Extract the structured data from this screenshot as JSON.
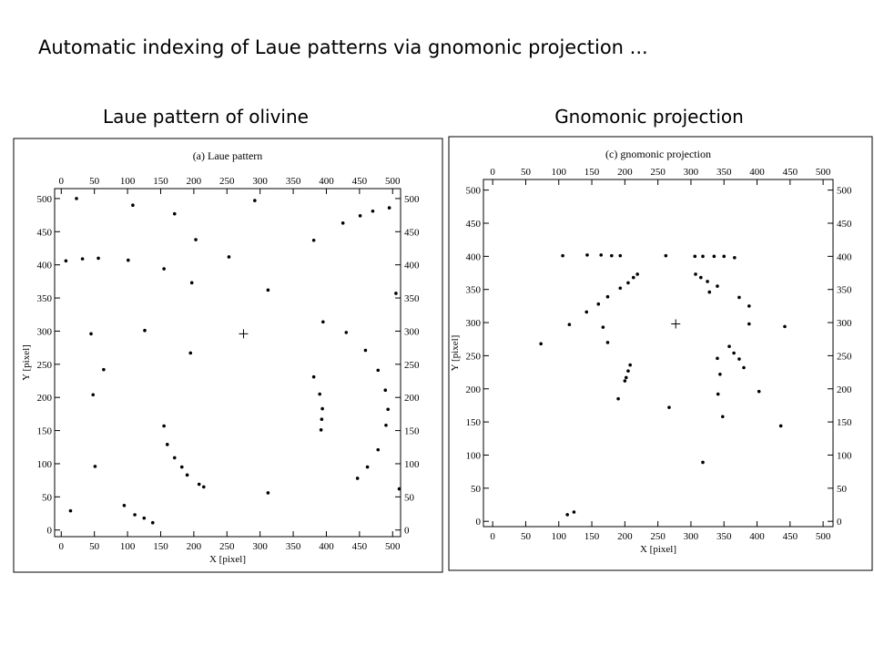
{
  "title": "Automatic indexing of Laue patterns via gnomonic projection ...",
  "chart_data": [
    {
      "type": "scatter",
      "heading": "Laue pattern of olivine",
      "title": "(a) Laue pattern",
      "x_label": "X [pixel]",
      "y_label": "Y [pixel]",
      "color": "#000000",
      "xlim": [
        -10,
        512
      ],
      "ylim": [
        -10,
        515
      ],
      "xticks": [
        0,
        50,
        100,
        150,
        200,
        250,
        300,
        350,
        400,
        450,
        500
      ],
      "yticks": [
        0,
        50,
        100,
        150,
        200,
        250,
        300,
        350,
        400,
        450,
        500
      ],
      "center": [
        275,
        296
      ],
      "x": [
        23,
        108,
        171,
        292,
        203,
        7,
        32,
        56,
        101,
        155,
        197,
        253,
        312,
        381,
        425,
        451,
        470,
        495,
        505,
        45,
        126,
        64,
        48,
        195,
        395,
        430,
        459,
        478,
        489,
        493,
        381,
        390,
        394,
        393,
        392,
        490,
        478,
        462,
        447,
        155,
        160,
        171,
        182,
        190,
        208,
        215,
        312,
        510,
        51,
        14,
        95,
        111,
        125,
        138
      ],
      "y": [
        500,
        490,
        477,
        497,
        438,
        406,
        409,
        410,
        407,
        394,
        373,
        412,
        362,
        437,
        463,
        474,
        481,
        486,
        357,
        296,
        301,
        242,
        204,
        267,
        314,
        298,
        271,
        241,
        211,
        182,
        231,
        205,
        183,
        167,
        151,
        158,
        121,
        95,
        78,
        157,
        129,
        109,
        95,
        83,
        69,
        65,
        56,
        62,
        96,
        29,
        37,
        23,
        18,
        11
      ]
    },
    {
      "type": "scatter",
      "heading": "Gnomonic projection",
      "title": "(c) gnomonic projection",
      "x_label": "X [pixel]",
      "y_label": "Y [pixel]",
      "color": "#000000",
      "xlim": [
        -14,
        515
      ],
      "ylim": [
        -8,
        516
      ],
      "xticks": [
        0,
        50,
        100,
        150,
        200,
        250,
        300,
        350,
        400,
        450,
        500
      ],
      "yticks": [
        0,
        50,
        100,
        150,
        200,
        250,
        300,
        350,
        400,
        450,
        500
      ],
      "center": [
        277,
        298
      ],
      "x": [
        106,
        143,
        164,
        180,
        193,
        262,
        306,
        318,
        335,
        350,
        366,
        219,
        213,
        205,
        193,
        174,
        160,
        142,
        116,
        167,
        174,
        73,
        307,
        315,
        325,
        340,
        328,
        373,
        388,
        388,
        442,
        340,
        358,
        365,
        373,
        380,
        344,
        403,
        341,
        208,
        205,
        202,
        200,
        190,
        267,
        348,
        436,
        318,
        123,
        113
      ],
      "y": [
        401,
        402,
        402,
        401,
        401,
        401,
        400,
        400,
        400,
        400,
        398,
        373,
        368,
        360,
        352,
        339,
        328,
        316,
        297,
        293,
        270,
        268,
        373,
        368,
        362,
        355,
        346,
        338,
        325,
        298,
        294,
        246,
        264,
        254,
        245,
        232,
        222,
        196,
        192,
        236,
        227,
        217,
        212,
        185,
        172,
        158,
        144,
        89,
        14,
        10
      ]
    }
  ]
}
